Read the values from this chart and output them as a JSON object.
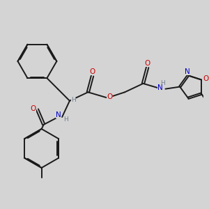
{
  "bg_color": "#d4d4d4",
  "bond_color": "#1a1a1a",
  "atom_colors": {
    "O": "#cc0000",
    "N": "#0000cc",
    "H": "#708090",
    "C": "#1a1a1a"
  },
  "lw": 1.4,
  "figsize": [
    3.0,
    3.0
  ],
  "dpi": 100
}
